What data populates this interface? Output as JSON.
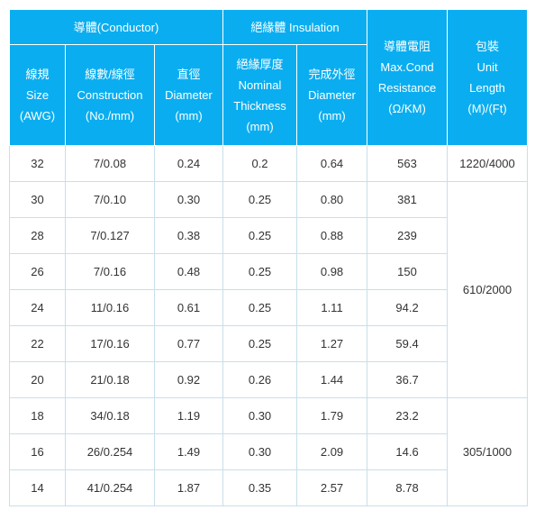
{
  "headers": {
    "conductor": "導體(Conductor)",
    "insulation": "絕緣體 Insulation",
    "resistance": [
      "導體電阻",
      "Max.Cond",
      "Resistance",
      "(Ω/KM)"
    ],
    "length": [
      "包裝",
      "Unit",
      "Length",
      "(M)/(Ft)"
    ],
    "size": [
      "線規",
      "Size",
      "(AWG)"
    ],
    "construction": [
      "線數/線徑",
      "Construction",
      "(No./mm)"
    ],
    "diameter": [
      "直徑",
      "Diameter",
      "(mm)"
    ],
    "thickness": [
      "絕緣厚度",
      "Nominal",
      "Thickness",
      "(mm)"
    ],
    "od": [
      "完成外徑",
      "Diameter",
      "(mm)"
    ]
  },
  "rows": [
    {
      "size": "32",
      "construction": "7/0.08",
      "diameter": "0.24",
      "thickness": "0.2",
      "od": "0.64",
      "resistance": "563"
    },
    {
      "size": "30",
      "construction": "7/0.10",
      "diameter": "0.30",
      "thickness": "0.25",
      "od": "0.80",
      "resistance": "381"
    },
    {
      "size": "28",
      "construction": "7/0.127",
      "diameter": "0.38",
      "thickness": "0.25",
      "od": "0.88",
      "resistance": "239"
    },
    {
      "size": "26",
      "construction": "7/0.16",
      "diameter": "0.48",
      "thickness": "0.25",
      "od": "0.98",
      "resistance": "150"
    },
    {
      "size": "24",
      "construction": "11/0.16",
      "diameter": "0.61",
      "thickness": "0.25",
      "od": "1.11",
      "resistance": "94.2"
    },
    {
      "size": "22",
      "construction": "17/0.16",
      "diameter": "0.77",
      "thickness": "0.25",
      "od": "1.27",
      "resistance": "59.4"
    },
    {
      "size": "20",
      "construction": "21/0.18",
      "diameter": "0.92",
      "thickness": "0.26",
      "od": "1.44",
      "resistance": "36.7"
    },
    {
      "size": "18",
      "construction": "34/0.18",
      "diameter": "1.19",
      "thickness": "0.30",
      "od": "1.79",
      "resistance": "23.2"
    },
    {
      "size": "16",
      "construction": "26/0.254",
      "diameter": "1.49",
      "thickness": "0.30",
      "od": "2.09",
      "resistance": "14.6"
    },
    {
      "size": "14",
      "construction": "41/0.254",
      "diameter": "1.87",
      "thickness": "0.35",
      "od": "2.57",
      "resistance": "8.78"
    }
  ],
  "lengths": [
    {
      "value": "1220/4000",
      "span": 1
    },
    {
      "value": "610/2000",
      "span": 6
    },
    {
      "value": "305/1000",
      "span": 3
    }
  ]
}
